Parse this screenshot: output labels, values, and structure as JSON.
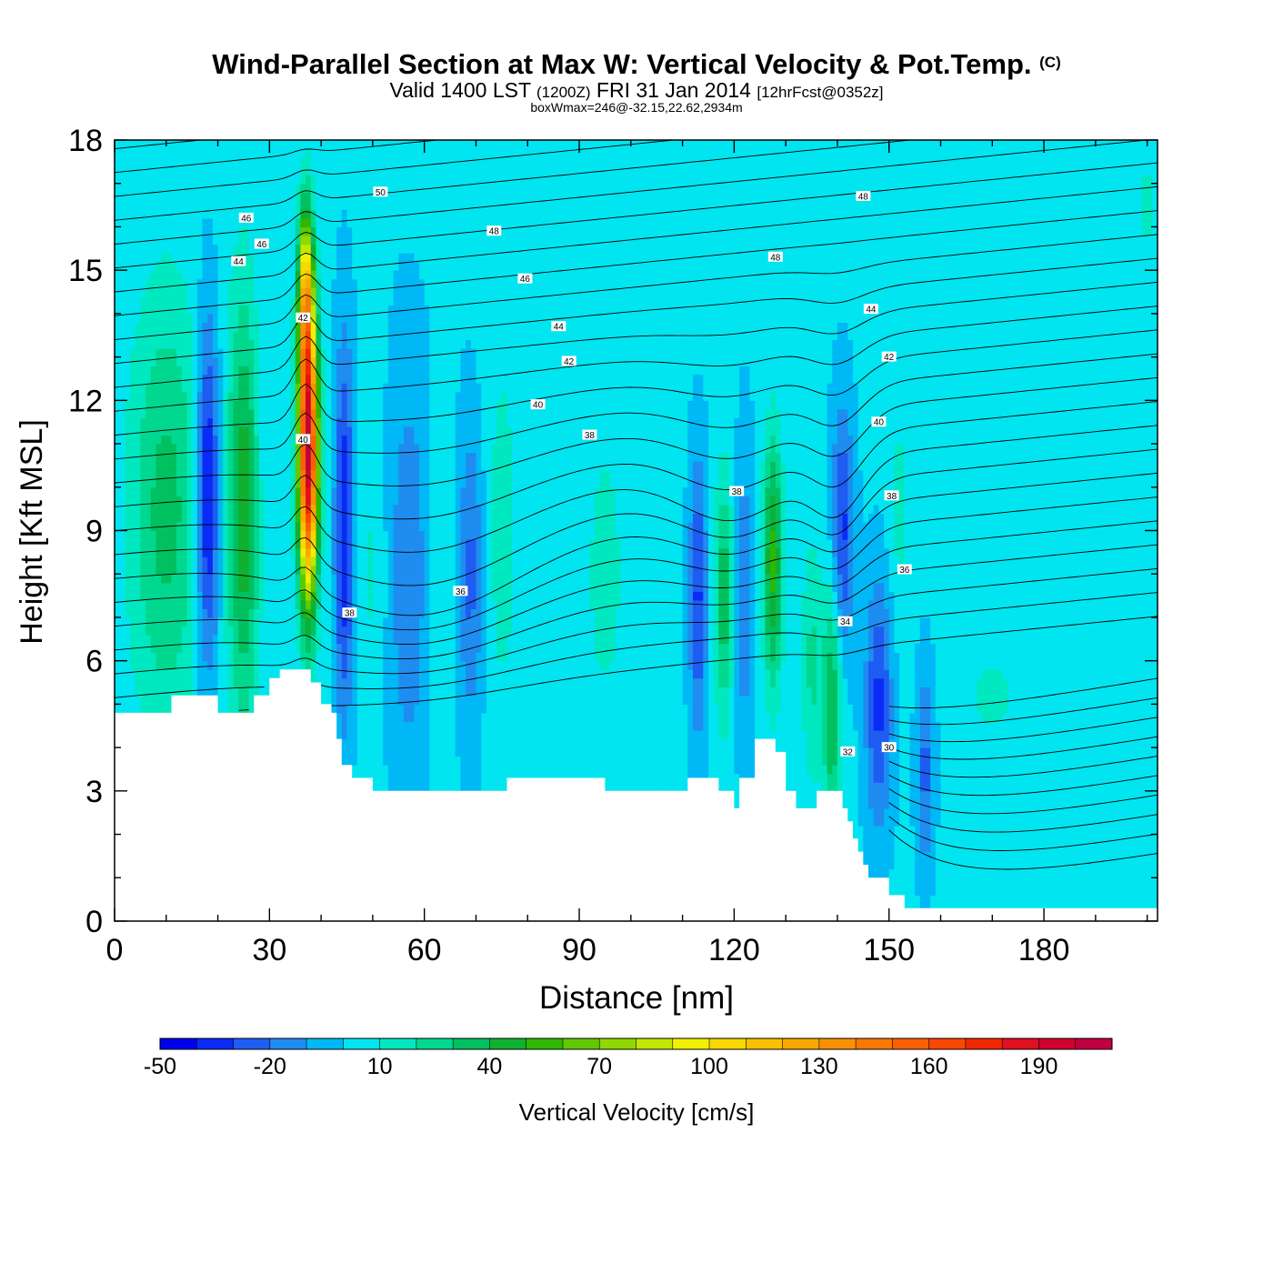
{
  "title": {
    "main": "Wind-Parallel Section at Max W: Vertical Velocity & Pot.Temp.",
    "copyright": "(C)",
    "valid_prefix": "Valid 1400 LST",
    "valid_z": "(1200Z)",
    "valid_date": "FRI 31 Jan 2014",
    "forecast": "[12hrFcst@0352z]",
    "box_wmax": "boxWmax=246@-32.15,22.62,2934m"
  },
  "chart_data": {
    "type": "heatmap",
    "xlabel": "Distance [nm]",
    "ylabel": "Height [Kft MSL]",
    "xlim": [
      0,
      202
    ],
    "ylim": [
      0,
      18
    ],
    "x_ticks": [
      0,
      30,
      60,
      90,
      120,
      150,
      180
    ],
    "y_ticks": [
      0,
      3,
      6,
      9,
      12,
      15,
      18
    ],
    "x_minor_step": 10,
    "y_minor_step": 1,
    "colorbar": {
      "label": "Vertical Velocity [cm/s]",
      "levels": [
        -50,
        -40,
        -30,
        -20,
        -10,
        0,
        10,
        20,
        30,
        40,
        50,
        60,
        70,
        80,
        90,
        100,
        110,
        120,
        130,
        140,
        150,
        160,
        170,
        180,
        190,
        200,
        210
      ],
      "tick_labels": [
        "-50",
        "-20",
        "10",
        "40",
        "70",
        "100",
        "130",
        "160",
        "190"
      ],
      "tick_values": [
        -50,
        -20,
        10,
        40,
        70,
        100,
        130,
        160,
        190
      ],
      "colors": [
        "#0000ee",
        "#0a2bf5",
        "#1e5cf2",
        "#1f8cf0",
        "#00b8f5",
        "#00e5f0",
        "#00e8c0",
        "#00d890",
        "#00c060",
        "#10b030",
        "#30b800",
        "#60c800",
        "#90d800",
        "#c0e800",
        "#f0f000",
        "#f8d800",
        "#f8c000",
        "#f8a800",
        "#f89000",
        "#f87800",
        "#f86000",
        "#f84800",
        "#f02800",
        "#e01020",
        "#d00030",
        "#c00040"
      ]
    },
    "terrain": [
      [
        0,
        4.8
      ],
      [
        10,
        4.8
      ],
      [
        11,
        5.2
      ],
      [
        19,
        5.2
      ],
      [
        20,
        4.8
      ],
      [
        26,
        4.8
      ],
      [
        27,
        5.2
      ],
      [
        29,
        5.2
      ],
      [
        30,
        5.6
      ],
      [
        31,
        5.6
      ],
      [
        32,
        5.8
      ],
      [
        37,
        5.8
      ],
      [
        38,
        5.5
      ],
      [
        39,
        5.5
      ],
      [
        40,
        5.0
      ],
      [
        42,
        4.8
      ],
      [
        43,
        4.2
      ],
      [
        44,
        3.6
      ],
      [
        46,
        3.3
      ],
      [
        50,
        3.0
      ],
      [
        75,
        3.0
      ],
      [
        76,
        3.3
      ],
      [
        94,
        3.3
      ],
      [
        95,
        3.0
      ],
      [
        110,
        3.0
      ],
      [
        111,
        3.3
      ],
      [
        116,
        3.3
      ],
      [
        117,
        3.0
      ],
      [
        119,
        3.0
      ],
      [
        120,
        2.6
      ],
      [
        121,
        3.3
      ],
      [
        123,
        3.3
      ],
      [
        124,
        4.2
      ],
      [
        127,
        4.2
      ],
      [
        128,
        3.9
      ],
      [
        129,
        3.9
      ],
      [
        130,
        3.0
      ],
      [
        132,
        2.6
      ],
      [
        135,
        2.6
      ],
      [
        136,
        3.0
      ],
      [
        140,
        3.0
      ],
      [
        141,
        2.6
      ],
      [
        142,
        2.3
      ],
      [
        143,
        1.9
      ],
      [
        144,
        1.6
      ],
      [
        145,
        1.3
      ],
      [
        146,
        1.0
      ],
      [
        149,
        1.0
      ],
      [
        150,
        0.6
      ],
      [
        152,
        0.6
      ],
      [
        153,
        0.3
      ],
      [
        202,
        0.3
      ]
    ],
    "w_features": [
      {
        "x": 10,
        "y": 9.5,
        "sx": 5,
        "sy": 3.5,
        "w": 32
      },
      {
        "x": 18,
        "y": 9.8,
        "sx": 1.6,
        "sy": 2.8,
        "w": -50
      },
      {
        "x": 25,
        "y": 9.5,
        "sx": 2.2,
        "sy": 3.5,
        "w": 45
      },
      {
        "x": 29,
        "y": 11.0,
        "sx": 1.5,
        "sy": 3.0,
        "w": -5
      },
      {
        "x": 37.5,
        "y": 10.8,
        "sx": 1.3,
        "sy": 2.3,
        "w": 200
      },
      {
        "x": 37.0,
        "y": 14.5,
        "sx": 1.0,
        "sy": 1.4,
        "w": 90
      },
      {
        "x": 44.5,
        "y": 9.0,
        "sx": 1.3,
        "sy": 3.0,
        "w": -42
      },
      {
        "x": 50,
        "y": 8.0,
        "sx": 2.0,
        "sy": 2.5,
        "w": 10
      },
      {
        "x": 57,
        "y": 8.0,
        "sx": 3.0,
        "sy": 3.5,
        "w": -20
      },
      {
        "x": 63,
        "y": 8.0,
        "sx": 2.0,
        "sy": 2.5,
        "w": 8
      },
      {
        "x": 69,
        "y": 8.0,
        "sx": 1.8,
        "sy": 2.5,
        "w": -25
      },
      {
        "x": 75,
        "y": 9.0,
        "sx": 2.5,
        "sy": 3.5,
        "w": 12
      },
      {
        "x": 95,
        "y": 8.0,
        "sx": 4.0,
        "sy": 3.5,
        "w": 10
      },
      {
        "x": 113,
        "y": 7.5,
        "sx": 1.2,
        "sy": 2.2,
        "w": -35
      },
      {
        "x": 118,
        "y": 7.5,
        "sx": 1.3,
        "sy": 2.0,
        "w": 35
      },
      {
        "x": 122,
        "y": 7.5,
        "sx": 1.3,
        "sy": 2.5,
        "w": -20
      },
      {
        "x": 127.5,
        "y": 8.3,
        "sx": 1.3,
        "sy": 2.0,
        "w": 52
      },
      {
        "x": 135,
        "y": 6.0,
        "sx": 1.4,
        "sy": 2.0,
        "w": 20
      },
      {
        "x": 139,
        "y": 5.0,
        "sx": 1.3,
        "sy": 2.0,
        "w": 40
      },
      {
        "x": 141,
        "y": 9.0,
        "sx": 1.5,
        "sy": 2.0,
        "w": -35
      },
      {
        "x": 148,
        "y": 5.0,
        "sx": 1.8,
        "sy": 2.0,
        "w": -35
      },
      {
        "x": 157,
        "y": 3.5,
        "sx": 1.2,
        "sy": 1.6,
        "w": -25
      },
      {
        "x": 152,
        "y": 9.5,
        "sx": 1.5,
        "sy": 1.8,
        "w": 12
      },
      {
        "x": 170,
        "y": 5.2,
        "sx": 4.0,
        "sy": 0.8,
        "w": 11
      },
      {
        "x": 178,
        "y": 10.0,
        "sx": 5.0,
        "sy": 3.0,
        "w": -2
      },
      {
        "x": 90,
        "y": 16.0,
        "sx": 8.0,
        "sy": 2.0,
        "w": 5
      },
      {
        "x": 200,
        "y": 16.5,
        "sx": 0.8,
        "sy": 1.2,
        "w": 12
      }
    ],
    "theta_labels": [
      {
        "text": "50",
        "x": 51.5,
        "y": 16.8
      },
      {
        "text": "48",
        "x": 145,
        "y": 16.7
      },
      {
        "text": "48",
        "x": 73.5,
        "y": 15.9
      },
      {
        "text": "48",
        "x": 128,
        "y": 15.3
      },
      {
        "text": "46",
        "x": 25.5,
        "y": 16.2
      },
      {
        "text": "46",
        "x": 28.5,
        "y": 15.6
      },
      {
        "text": "46",
        "x": 79.5,
        "y": 14.8
      },
      {
        "text": "44",
        "x": 24,
        "y": 15.2
      },
      {
        "text": "44",
        "x": 86,
        "y": 13.7
      },
      {
        "text": "44",
        "x": 146.5,
        "y": 14.1
      },
      {
        "text": "42",
        "x": 36.5,
        "y": 13.9
      },
      {
        "text": "42",
        "x": 88,
        "y": 12.9
      },
      {
        "text": "42",
        "x": 150,
        "y": 13.0
      },
      {
        "text": "40",
        "x": 36.5,
        "y": 11.1
      },
      {
        "text": "40",
        "x": 82,
        "y": 11.9
      },
      {
        "text": "40",
        "x": 148,
        "y": 11.5
      },
      {
        "text": "38",
        "x": 92,
        "y": 11.2
      },
      {
        "text": "38",
        "x": 120.5,
        "y": 9.9
      },
      {
        "text": "38",
        "x": 150.5,
        "y": 9.8
      },
      {
        "text": "38",
        "x": 45.5,
        "y": 7.1
      },
      {
        "text": "36",
        "x": 67,
        "y": 7.6
      },
      {
        "text": "36",
        "x": 153,
        "y": 8.1
      },
      {
        "text": "34",
        "x": 141.5,
        "y": 6.9
      },
      {
        "text": "32",
        "x": 142,
        "y": 3.9
      },
      {
        "text": "30",
        "x": 150,
        "y": 4.0
      }
    ]
  }
}
